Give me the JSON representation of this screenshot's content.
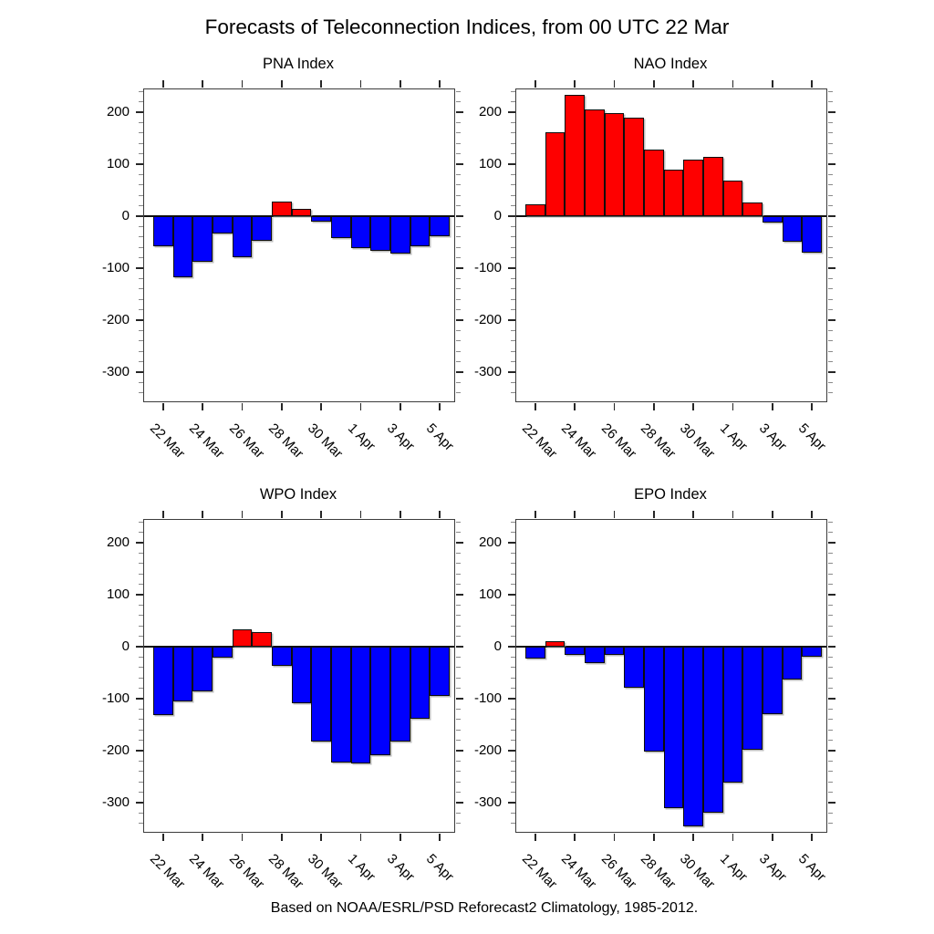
{
  "page": {
    "title": "Forecasts of Teleconnection Indices, from 00 UTC 22 Mar",
    "footer": "Based on NOAA/ESRL/PSD Reforecast2 Climatology, 1985-2012."
  },
  "colors": {
    "bar_positive": "#fe0000",
    "bar_negative": "#0000fe",
    "axis": "#262626",
    "background": "#ffffff"
  },
  "chart_data": [
    {
      "type": "bar",
      "title": "PNA Index",
      "categories": [
        "22 Mar",
        "23 Mar",
        "24 Mar",
        "25 Mar",
        "26 Mar",
        "27 Mar",
        "28 Mar",
        "29 Mar",
        "30 Mar",
        "31 Mar",
        "1 Apr",
        "2 Apr",
        "3 Apr",
        "4 Apr",
        "5 Apr"
      ],
      "values": [
        -57,
        -118,
        -87,
        -33,
        -79,
        -48,
        29,
        15,
        -11,
        -42,
        -61,
        -67,
        -71,
        -57,
        -38
      ],
      "ylim": [
        -356,
        244
      ],
      "yticks": [
        200,
        100,
        0,
        -100,
        -200,
        -300
      ],
      "ytick_minor_step": 20,
      "xtick_indices": [
        0,
        2,
        4,
        6,
        8,
        10,
        12,
        14
      ],
      "xtick_labels": [
        "22 Mar",
        "24 Mar",
        "26 Mar",
        "28 Mar",
        "30 Mar",
        "1 Apr",
        "3 Apr",
        "5 Apr"
      ],
      "grid": false,
      "legend": "none",
      "color_rule": "red if value >= 0 else blue"
    },
    {
      "type": "bar",
      "title": "NAO Index",
      "categories": [
        "22 Mar",
        "23 Mar",
        "24 Mar",
        "25 Mar",
        "26 Mar",
        "27 Mar",
        "28 Mar",
        "29 Mar",
        "30 Mar",
        "31 Mar",
        "1 Apr",
        "2 Apr",
        "3 Apr",
        "4 Apr",
        "5 Apr"
      ],
      "values": [
        23,
        161,
        233,
        205,
        198,
        189,
        129,
        89,
        109,
        114,
        69,
        27,
        -12,
        -49,
        -70
      ],
      "ylim": [
        -356,
        244
      ],
      "yticks": [
        200,
        100,
        0,
        -100,
        -200,
        -300
      ],
      "ytick_minor_step": 20,
      "xtick_indices": [
        0,
        2,
        4,
        6,
        8,
        10,
        12,
        14
      ],
      "xtick_labels": [
        "22 Mar",
        "24 Mar",
        "26 Mar",
        "28 Mar",
        "30 Mar",
        "1 Apr",
        "3 Apr",
        "5 Apr"
      ],
      "grid": false,
      "legend": "none",
      "color_rule": "red if value >= 0 else blue"
    },
    {
      "type": "bar",
      "title": "WPO Index",
      "categories": [
        "22 Mar",
        "23 Mar",
        "24 Mar",
        "25 Mar",
        "26 Mar",
        "27 Mar",
        "28 Mar",
        "29 Mar",
        "30 Mar",
        "31 Mar",
        "1 Apr",
        "2 Apr",
        "3 Apr",
        "4 Apr",
        "5 Apr"
      ],
      "values": [
        -132,
        -106,
        -85,
        -21,
        34,
        29,
        -37,
        -109,
        -182,
        -222,
        -225,
        -208,
        -182,
        -138,
        -94
      ],
      "ylim": [
        -356,
        244
      ],
      "yticks": [
        200,
        100,
        0,
        -100,
        -200,
        -300
      ],
      "ytick_minor_step": 20,
      "xtick_indices": [
        0,
        2,
        4,
        6,
        8,
        10,
        12,
        14
      ],
      "xtick_labels": [
        "22 Mar",
        "24 Mar",
        "26 Mar",
        "28 Mar",
        "30 Mar",
        "1 Apr",
        "3 Apr",
        "5 Apr"
      ],
      "grid": false,
      "legend": "none",
      "color_rule": "red if value >= 0 else blue"
    },
    {
      "type": "bar",
      "title": "EPO Index",
      "categories": [
        "22 Mar",
        "23 Mar",
        "24 Mar",
        "25 Mar",
        "26 Mar",
        "27 Mar",
        "28 Mar",
        "29 Mar",
        "30 Mar",
        "31 Mar",
        "1 Apr",
        "2 Apr",
        "3 Apr",
        "4 Apr",
        "5 Apr"
      ],
      "values": [
        -23,
        11,
        -16,
        -32,
        -16,
        -79,
        -201,
        -310,
        -346,
        -320,
        -261,
        -198,
        -130,
        -63,
        -20
      ],
      "ylim": [
        -356,
        244
      ],
      "yticks": [
        200,
        100,
        0,
        -100,
        -200,
        -300
      ],
      "ytick_minor_step": 20,
      "xtick_indices": [
        0,
        2,
        4,
        6,
        8,
        10,
        12,
        14
      ],
      "xtick_labels": [
        "22 Mar",
        "24 Mar",
        "26 Mar",
        "28 Mar",
        "30 Mar",
        "1 Apr",
        "3 Apr",
        "5 Apr"
      ],
      "grid": false,
      "legend": "none",
      "color_rule": "red if value >= 0 else blue"
    }
  ]
}
